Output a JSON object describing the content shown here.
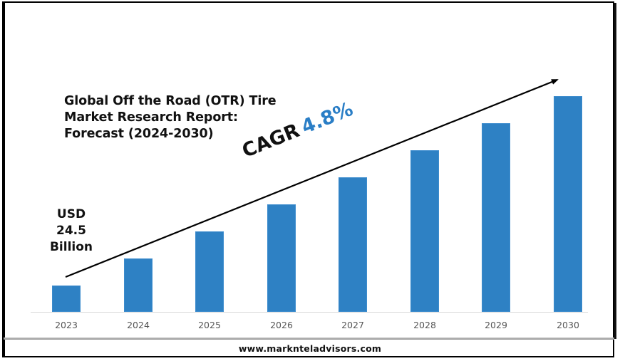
{
  "title": "Global Off the Road (OTR) Tire\nMarket Research Report:\nForecast (2024-2030)",
  "base_value": {
    "line1": "USD",
    "line2": "24.5",
    "line3": "Billion"
  },
  "cagr": {
    "label": "CAGR",
    "value": "4.8%"
  },
  "footer": {
    "website": "www.marknteladvisors.com"
  },
  "colors": {
    "bar": "#2e81c4",
    "cagr_value": "#2a7ec6",
    "text": "#111111",
    "tick_label": "#555555"
  },
  "chart_data": {
    "type": "bar",
    "title": "Global Off the Road (OTR) Tire Market Research Report: Forecast (2024-2030)",
    "xlabel": "",
    "ylabel": "",
    "categories": [
      "2023",
      "2024",
      "2025",
      "2026",
      "2027",
      "2028",
      "2029",
      "2030"
    ],
    "values": [
      37,
      75,
      113,
      151,
      189,
      227,
      265,
      303
    ],
    "value_units": "relative bar height (px, no y-axis shown)",
    "annotations": [
      {
        "text": "USD 24.5 Billion",
        "target": "2023"
      },
      {
        "text": "CAGR 4.8%",
        "type": "trend-arrow"
      }
    ],
    "grid": false,
    "legend": null,
    "ylim": [
      0,
      320
    ]
  }
}
